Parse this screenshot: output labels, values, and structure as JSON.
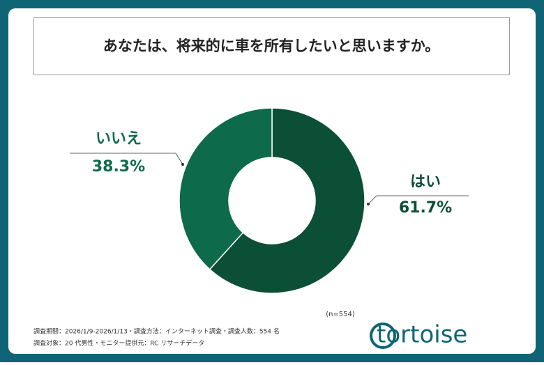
{
  "chart_data": {
    "type": "donut",
    "title": "あなたは、将来的に車を所有したいと思いますか。",
    "categories": [
      "はい",
      "いいえ"
    ],
    "values": [
      61.7,
      38.3
    ],
    "value_labels": [
      "61.7%",
      "38.3%"
    ],
    "colors": [
      "#0b4f37",
      "#0d6a4a"
    ],
    "note": "(n=554)",
    "footnotes": [
      "調査期間：2026/1/9-2026/1/13・調査方法：インターネット調査・調査人数：554 名",
      "調査対象：20 代男性・モニター提供元：RC リサーチデータ"
    ]
  },
  "logo": "tortoise"
}
